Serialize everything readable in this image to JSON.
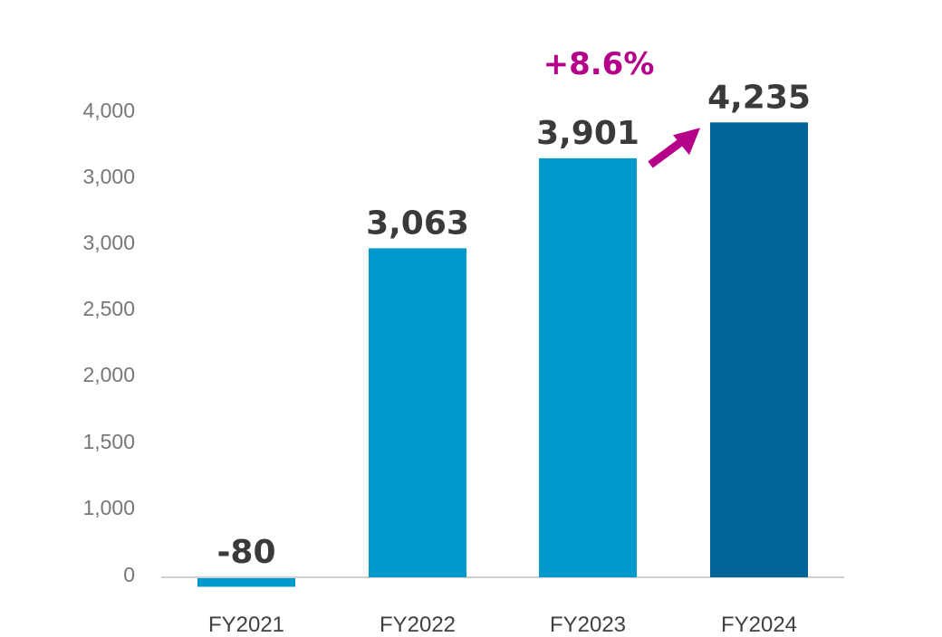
{
  "chart_data": {
    "type": "bar",
    "categories": [
      "FY2021",
      "FY2022",
      "FY2023",
      "FY2024"
    ],
    "values": [
      -80,
      3063,
      3901,
      4235
    ],
    "value_labels": [
      "-80",
      "3,063",
      "3,901",
      "4,235"
    ],
    "y_tick_labels": [
      "0",
      "1,000",
      "1,500",
      "2,000",
      "2,500",
      "3,000",
      "3,000",
      "4,000"
    ],
    "growth_annotation": "+8.6%",
    "title": "",
    "xlabel": "",
    "ylabel": "",
    "grid": false,
    "legend": "none"
  },
  "colors": {
    "bar": "#0099CC",
    "bar_highlight": "#006699",
    "annotation": "#B5008A",
    "axis": "#D0D0D0",
    "tick_text": "#777777",
    "label_text": "#3A3A3A"
  }
}
